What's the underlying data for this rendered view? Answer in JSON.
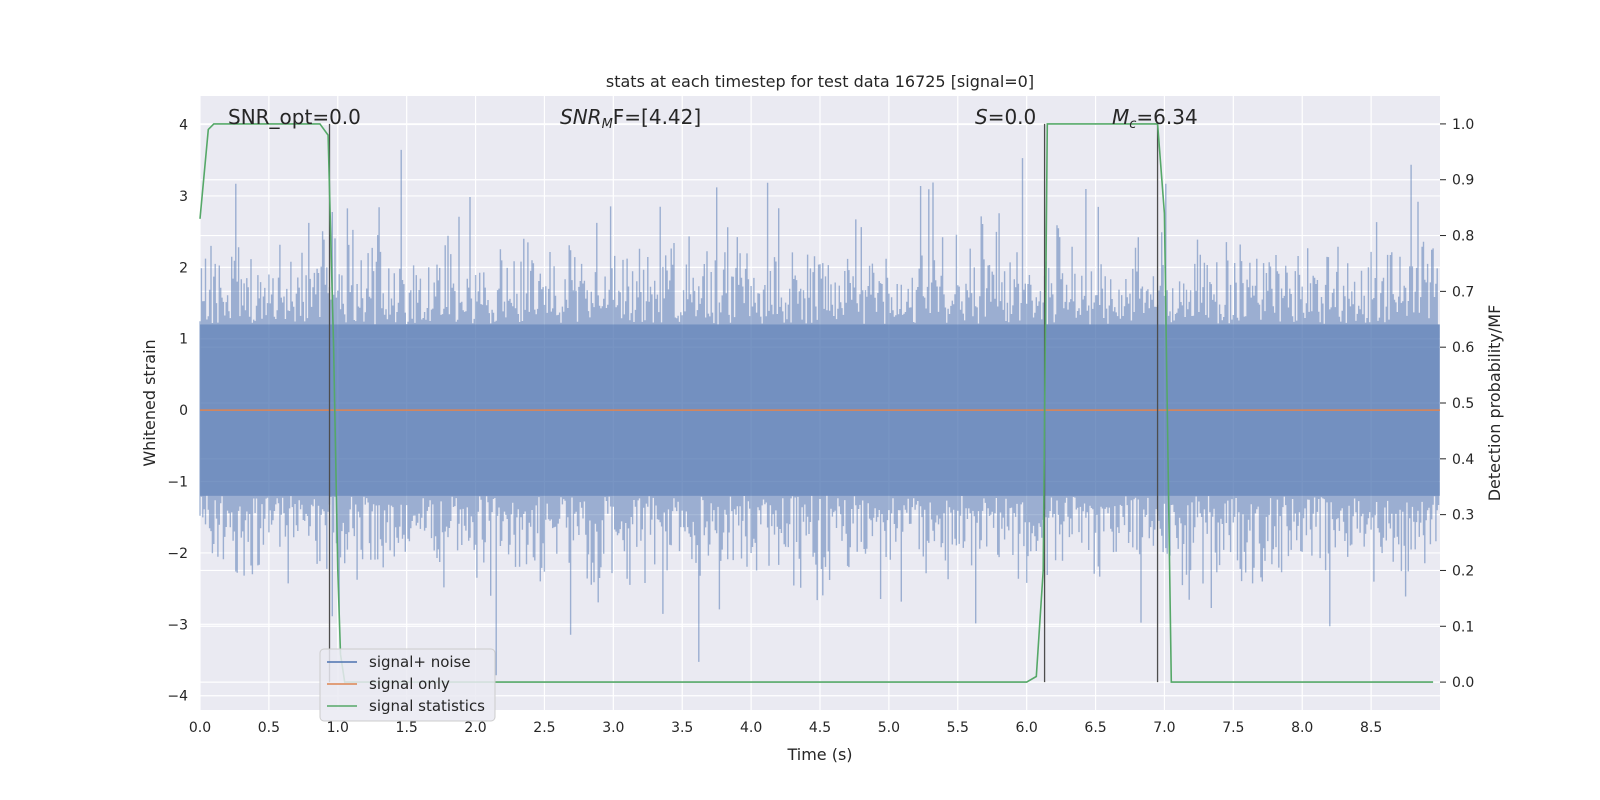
{
  "chart_data": {
    "type": "line",
    "title": "stats at each timestep for test data 16725 [signal=0]",
    "xlabel": "Time (s)",
    "ylabel_left": "Whitened strain",
    "ylabel_right": "Detection probability/MF",
    "xlim": [
      0.0,
      9.0
    ],
    "ylim_left": [
      -4.2,
      4.4
    ],
    "ylim_right": [
      -0.05,
      1.05
    ],
    "xticks": [
      0.0,
      0.5,
      1.0,
      1.5,
      2.0,
      2.5,
      3.0,
      3.5,
      4.0,
      4.5,
      5.0,
      5.5,
      6.0,
      6.5,
      7.0,
      7.5,
      8.0,
      8.5
    ],
    "xtick_labels": [
      "0.0",
      "0.5",
      "1.0",
      "1.5",
      "2.0",
      "2.5",
      "3.0",
      "3.5",
      "4.0",
      "4.5",
      "5.0",
      "5.5",
      "6.0",
      "6.5",
      "7.0",
      "7.5",
      "8.0",
      "8.5"
    ],
    "yticks_left": [
      -4,
      -3,
      -2,
      -1,
      0,
      1,
      2,
      3,
      4
    ],
    "ytick_labels_left": [
      "−4",
      "−3",
      "−2",
      "−1",
      "0",
      "1",
      "2",
      "3",
      "4"
    ],
    "yticks_right": [
      0.0,
      0.1,
      0.2,
      0.3,
      0.4,
      0.5,
      0.6,
      0.7,
      0.8,
      0.9,
      1.0
    ],
    "ytick_labels_right": [
      "0.0",
      "0.1",
      "0.2",
      "0.3",
      "0.4",
      "0.5",
      "0.6",
      "0.7",
      "0.8",
      "0.9",
      "1.0"
    ],
    "grid": true,
    "legend_position": "lower-left",
    "annotations": {
      "snr_opt": "SNR_opt=0.0",
      "snr_mf_main": "SNR",
      "snr_mf_sub": "M",
      "snr_mf_rest": "F=[4.42]",
      "s_italic": "S",
      "s_rest": "=0.0",
      "mc_italic": "M",
      "mc_sub": "c",
      "mc_rest": "=6.34"
    },
    "vlines_x": [
      0.94,
      6.13,
      6.95
    ],
    "series": [
      {
        "name": "signal+ noise",
        "axis": "left",
        "color": "#4c72b0",
        "kind": "noise",
        "sample_count": 900,
        "amplitude_hint": 4.0
      },
      {
        "name": "signal only",
        "axis": "left",
        "color": "#dd8452",
        "x": [
          0.0,
          9.0
        ],
        "y": [
          0.0,
          0.0
        ]
      },
      {
        "name": "signal statistics",
        "axis": "right",
        "color": "#55a868",
        "x": [
          0.0,
          0.06,
          0.1,
          0.15,
          0.2,
          0.3,
          0.4,
          0.5,
          0.6,
          0.7,
          0.8,
          0.87,
          0.93,
          0.97,
          1.0,
          1.02,
          1.05,
          1.1,
          1.2,
          1.5,
          2.0,
          3.0,
          4.0,
          5.0,
          5.5,
          6.0,
          6.07,
          6.12,
          6.15,
          6.2,
          6.3,
          6.5,
          6.7,
          6.9,
          6.95,
          7.0,
          7.05,
          7.1,
          7.5,
          8.0,
          8.5,
          8.95
        ],
        "y": [
          0.83,
          0.99,
          1.0,
          1.0,
          1.0,
          1.0,
          1.0,
          1.0,
          1.0,
          1.0,
          1.0,
          1.0,
          0.98,
          0.6,
          0.2,
          0.05,
          0.0,
          0.0,
          0.0,
          0.0,
          0.0,
          0.0,
          0.0,
          0.0,
          0.0,
          0.0,
          0.01,
          0.2,
          1.0,
          1.0,
          1.0,
          1.0,
          1.0,
          1.0,
          1.0,
          0.84,
          0.0,
          0.0,
          0.0,
          0.0,
          0.0,
          0.0
        ]
      }
    ],
    "colors": {
      "axes_bg": "#eaeaf2",
      "grid": "#ffffff",
      "vline": "#4d4d4d",
      "text": "#262626"
    }
  }
}
